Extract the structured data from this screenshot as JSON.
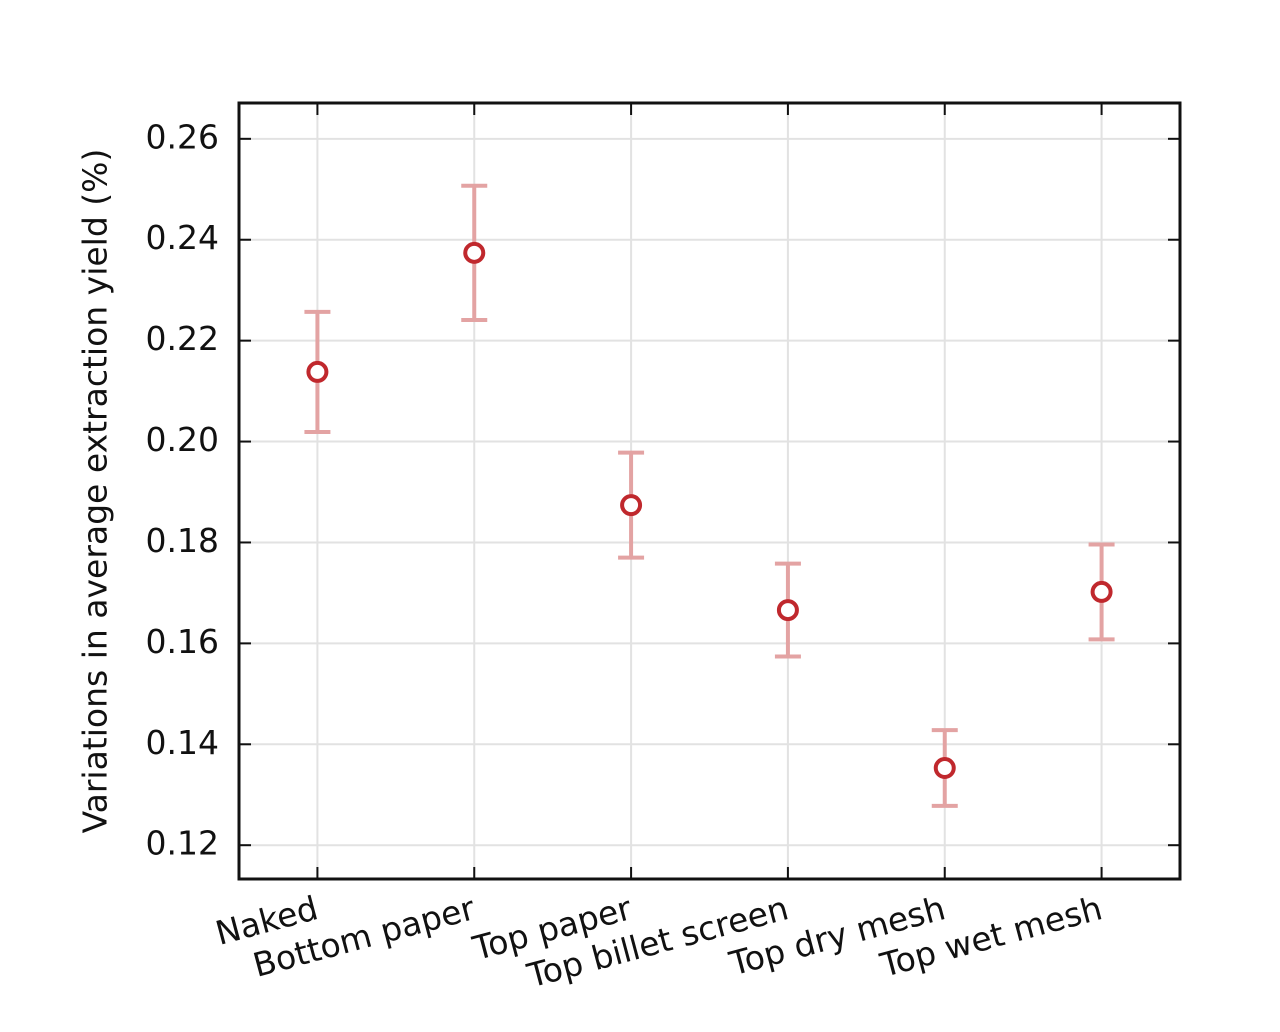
{
  "chart_data": {
    "type": "errorbar",
    "ylabel": "Variations in average extraction yield (%)",
    "categories": [
      "Naked",
      "Bottom paper",
      "Top paper",
      "Top billet screen",
      "Top dry mesh",
      "Top wet mesh"
    ],
    "values": [
      0.2138,
      0.2374,
      0.1874,
      0.1666,
      0.1353,
      0.1702
    ],
    "errors": [
      0.0119,
      0.0133,
      0.0104,
      0.0092,
      0.0075,
      0.0094
    ],
    "color": "#c0282d",
    "error_color": "#e3a3a3",
    "ylim": [
      0.1133,
      0.2671
    ],
    "yticks": [
      {
        "value": 0.12,
        "label": "0.12"
      },
      {
        "value": 0.14,
        "label": "0.14"
      },
      {
        "value": 0.16,
        "label": "0.16"
      },
      {
        "value": 0.18,
        "label": "0.18"
      },
      {
        "value": 0.2,
        "label": "0.20"
      },
      {
        "value": 0.22,
        "label": "0.22"
      },
      {
        "value": 0.24,
        "label": "0.24"
      },
      {
        "value": 0.26,
        "label": "0.26"
      }
    ],
    "grid": true
  }
}
